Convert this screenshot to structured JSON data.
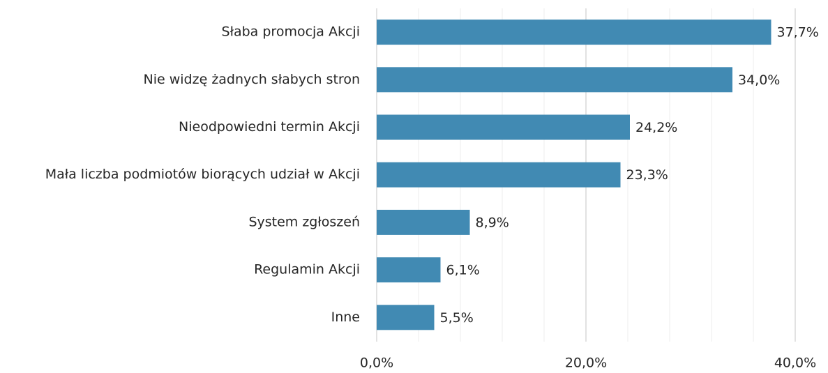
{
  "chart_data": {
    "type": "hbar",
    "categories": [
      "Słaba promocja Akcji",
      "Nie widzę żadnych słabych stron",
      "Nieodpowiedni termin Akcji",
      "Mała liczba podmiotów biorących udział w Akcji",
      "System zgłoszeń",
      "Regulamin Akcji",
      "Inne"
    ],
    "values": [
      37.7,
      34.0,
      24.2,
      23.3,
      8.9,
      6.1,
      5.5
    ],
    "value_labels": [
      "37,7%",
      "34,0%",
      "24,2%",
      "23,3%",
      "8,9%",
      "6,1%",
      "5,5%"
    ],
    "color": "#418ab3",
    "xlim": [
      0,
      40
    ],
    "xticks": [
      {
        "value": 0,
        "label": "0,0%"
      },
      {
        "value": 20,
        "label": "20,0%"
      },
      {
        "value": 40,
        "label": "40,0%"
      }
    ],
    "xminor": [
      4,
      8,
      12,
      16,
      24,
      28,
      32,
      36
    ],
    "grid": true
  }
}
